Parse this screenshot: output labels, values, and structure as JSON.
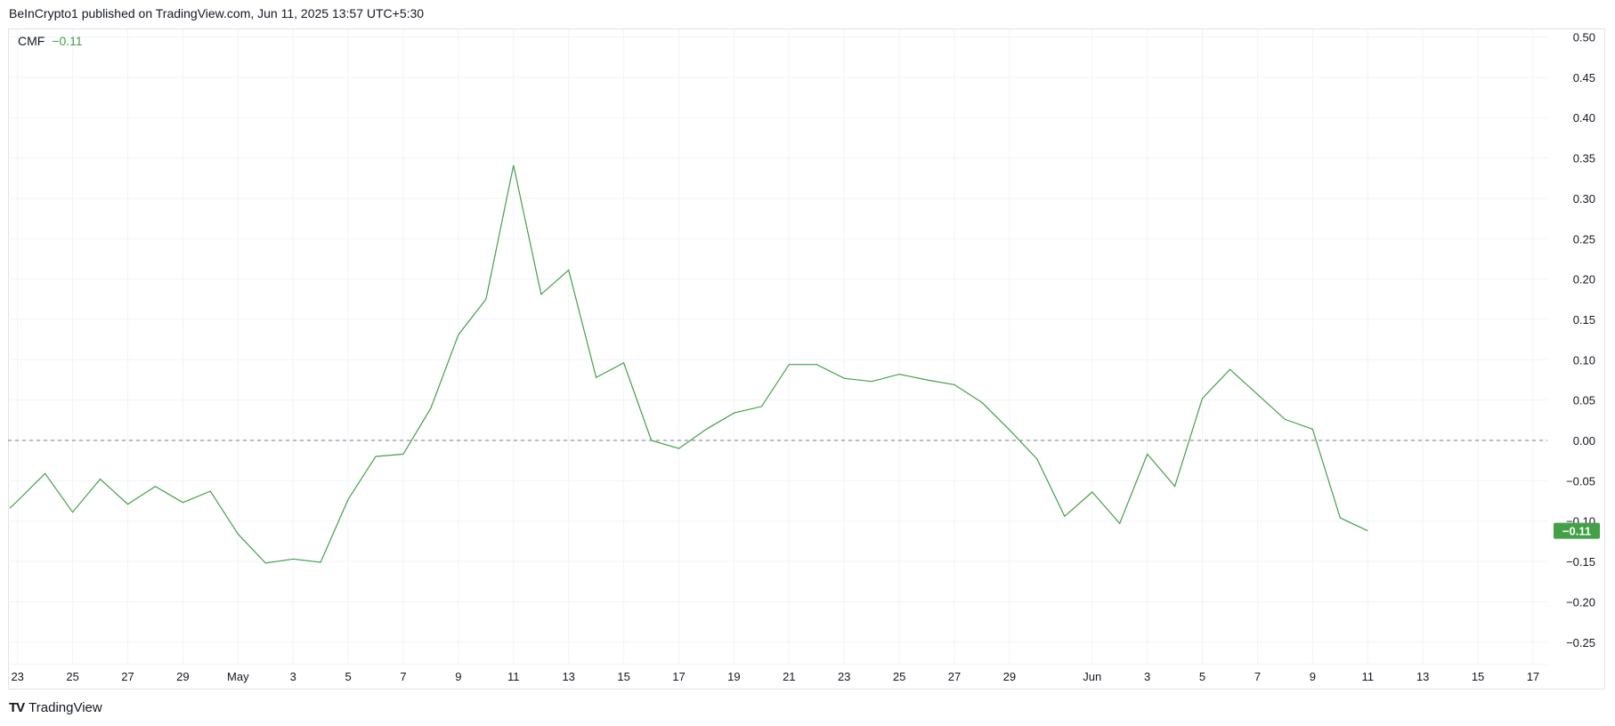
{
  "header": {
    "text": "BeInCrypto1 published on TradingView.com, Jun 11, 2025 13:57 UTC+5:30"
  },
  "legend": {
    "name": "CMF",
    "value": "−0.11"
  },
  "footer": {
    "logo": "TV",
    "brand": "TradingView"
  },
  "colors": {
    "line": "#43a047",
    "grid": "#f0f3fa",
    "zero_line": "#787b86",
    "badge": "#43a047"
  },
  "chart_data": {
    "type": "line",
    "title": "",
    "xlabel": "",
    "ylabel": "",
    "ylim": [
      -0.28,
      0.52
    ],
    "xlim": [
      "2025-04-22",
      "2025-06-19"
    ],
    "grid": true,
    "y_ticks": [
      "0.50",
      "0.45",
      "0.40",
      "0.35",
      "0.30",
      "0.25",
      "0.20",
      "0.15",
      "0.10",
      "0.05",
      "0.00",
      "−0.05",
      "−0.10",
      "−0.15",
      "−0.20",
      "−0.25"
    ],
    "y_tick_values": [
      0.5,
      0.45,
      0.4,
      0.35,
      0.3,
      0.25,
      0.2,
      0.15,
      0.1,
      0.05,
      0,
      -0.05,
      -0.1,
      -0.15,
      -0.2,
      -0.25
    ],
    "x_ticks": [
      {
        "date": "2025-04-23",
        "label": "23"
      },
      {
        "date": "2025-04-25",
        "label": "25"
      },
      {
        "date": "2025-04-27",
        "label": "27"
      },
      {
        "date": "2025-04-29",
        "label": "29"
      },
      {
        "date": "2025-05-01",
        "label": "May"
      },
      {
        "date": "2025-05-03",
        "label": "3"
      },
      {
        "date": "2025-05-05",
        "label": "5"
      },
      {
        "date": "2025-05-07",
        "label": "7"
      },
      {
        "date": "2025-05-09",
        "label": "9"
      },
      {
        "date": "2025-05-11",
        "label": "11"
      },
      {
        "date": "2025-05-13",
        "label": "13"
      },
      {
        "date": "2025-05-15",
        "label": "15"
      },
      {
        "date": "2025-05-17",
        "label": "17"
      },
      {
        "date": "2025-05-19",
        "label": "19"
      },
      {
        "date": "2025-05-21",
        "label": "21"
      },
      {
        "date": "2025-05-23",
        "label": "23"
      },
      {
        "date": "2025-05-25",
        "label": "25"
      },
      {
        "date": "2025-05-27",
        "label": "27"
      },
      {
        "date": "2025-05-29",
        "label": "29"
      },
      {
        "date": "2025-06-01",
        "label": "Jun"
      },
      {
        "date": "2025-06-03",
        "label": "3"
      },
      {
        "date": "2025-06-05",
        "label": "5"
      },
      {
        "date": "2025-06-07",
        "label": "7"
      },
      {
        "date": "2025-06-09",
        "label": "9"
      },
      {
        "date": "2025-06-11",
        "label": "11"
      },
      {
        "date": "2025-06-13",
        "label": "13"
      },
      {
        "date": "2025-06-15",
        "label": "15"
      },
      {
        "date": "2025-06-17",
        "label": "17"
      }
    ],
    "reference_line": {
      "value": 0,
      "style": "dashed"
    },
    "last_value_label": "−0.11",
    "series": [
      {
        "name": "CMF",
        "x": [
          "2025-04-23",
          "2025-04-24",
          "2025-04-25",
          "2025-04-26",
          "2025-04-27",
          "2025-04-28",
          "2025-04-29",
          "2025-04-30",
          "2025-05-01",
          "2025-05-02",
          "2025-05-03",
          "2025-05-04",
          "2025-05-05",
          "2025-05-06",
          "2025-05-07",
          "2025-05-08",
          "2025-05-09",
          "2025-05-10",
          "2025-05-11",
          "2025-05-12",
          "2025-05-13",
          "2025-05-14",
          "2025-05-15",
          "2025-05-16",
          "2025-05-17",
          "2025-05-18",
          "2025-05-19",
          "2025-05-20",
          "2025-05-21",
          "2025-05-22",
          "2025-05-23",
          "2025-05-24",
          "2025-05-25",
          "2025-05-26",
          "2025-05-27",
          "2025-05-28",
          "2025-05-29",
          "2025-05-30",
          "2025-05-31",
          "2025-06-01",
          "2025-06-02",
          "2025-06-03",
          "2025-06-04",
          "2025-06-05",
          "2025-06-06",
          "2025-06-07",
          "2025-06-08",
          "2025-06-09",
          "2025-06-10",
          "2025-06-11"
        ],
        "values": [
          -0.075,
          -0.041,
          -0.089,
          -0.048,
          -0.079,
          -0.057,
          -0.077,
          -0.063,
          -0.116,
          -0.152,
          -0.147,
          -0.151,
          -0.073,
          -0.02,
          -0.017,
          0.04,
          0.131,
          0.175,
          0.341,
          0.181,
          0.211,
          0.078,
          0.096,
          0.0,
          -0.01,
          0.014,
          0.034,
          0.042,
          0.094,
          0.094,
          0.077,
          0.073,
          0.082,
          0.075,
          0.069,
          0.047,
          0.013,
          -0.023,
          -0.094,
          -0.064,
          -0.103,
          -0.017,
          -0.057,
          0.052,
          0.088,
          0.057,
          0.026,
          0.014,
          -0.096,
          -0.112
        ]
      }
    ]
  }
}
